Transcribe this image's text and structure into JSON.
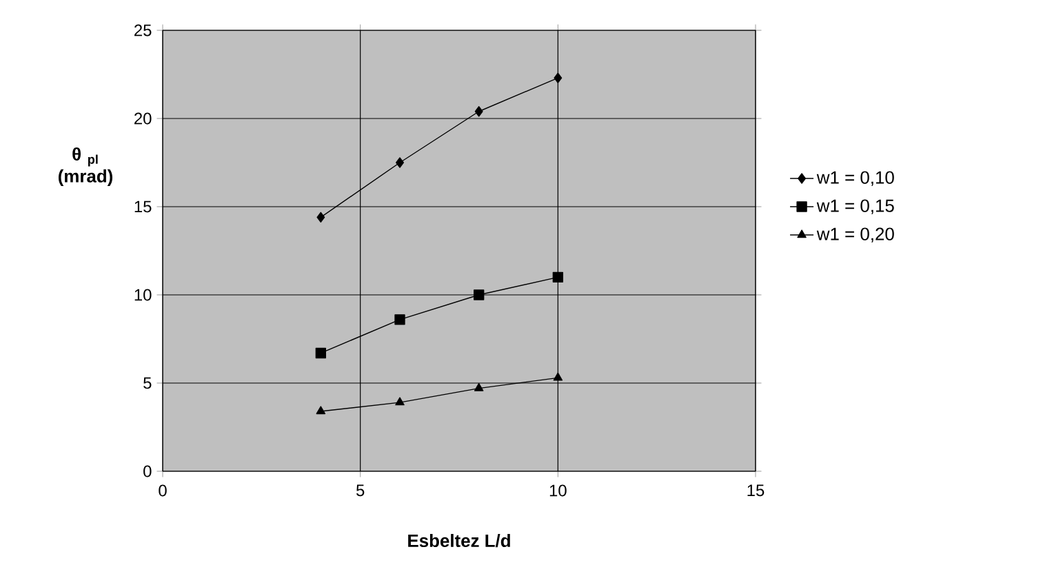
{
  "chart_data": {
    "type": "line",
    "xlabel": "Esbeltez L/d",
    "ylabel": "θ $_{pl}$ (mrad)",
    "x": [
      4,
      6,
      8,
      10
    ],
    "xlim": [
      0,
      15
    ],
    "ylim": [
      0,
      25
    ],
    "xticks": [
      0,
      5,
      10,
      15
    ],
    "yticks": [
      0,
      5,
      10,
      15,
      20,
      25
    ],
    "grid": true,
    "legend": "right",
    "line_style": "solid",
    "series": [
      {
        "name": "w1 = 0,10",
        "color": "#000000",
        "marker": "diamond",
        "values": [
          14.4,
          17.5,
          20.4,
          22.3
        ]
      },
      {
        "name": "w1 = 0,15",
        "color": "#000000",
        "marker": "square",
        "values": [
          6.7,
          8.6,
          10.0,
          11.0
        ]
      },
      {
        "name": "w1 = 0,20",
        "color": "#000000",
        "marker": "triangle",
        "values": [
          3.4,
          3.9,
          4.7,
          5.3
        ]
      }
    ]
  }
}
